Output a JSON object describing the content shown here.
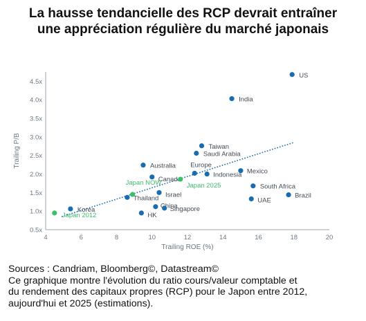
{
  "title_lines": [
    "La hausse tendancielle des RCP devrait entraîner",
    "une appréciation régulière du marché japonais"
  ],
  "footnote_lines": [
    "Sources : Candriam, Bloomberg©, Datastream©",
    "Ce graphique montre l'évolution du ratio cours/valeur comptable et",
    "du rendement des capitaux propres (RCP) pour le Japon entre 2012,",
    "aujourd'hui et 2025 (estimations)."
  ],
  "chart_data": {
    "type": "scatter",
    "xlabel": "Trailing ROE (%)",
    "ylabel": "Trailing P/B",
    "xlim": [
      4,
      20
    ],
    "ylim": [
      0.5,
      4.75
    ],
    "xticks": [
      4,
      6,
      8,
      10,
      12,
      14,
      16,
      18,
      20
    ],
    "xtick_labels": [
      "4",
      "6",
      "8",
      "10",
      "12",
      "14",
      "16",
      "18",
      "20"
    ],
    "yticks": [
      0.5,
      1.0,
      1.5,
      2.0,
      2.5,
      3.0,
      3.5,
      4.0,
      4.5
    ],
    "ytick_labels": [
      "0.5x",
      "1.0x",
      "1.5x",
      "2.0x",
      "2.5x",
      "3.0x",
      "3.5x",
      "4.0x",
      "4.5x"
    ],
    "grid": false,
    "colors": {
      "country": "#1a6cb0",
      "japan": "#3bbf6a",
      "trend": "#1a6cb0",
      "axis": "#9aa5b1",
      "tick_text": "#6b7785"
    },
    "points": [
      {
        "label": "US",
        "x": 17.9,
        "y": 4.68,
        "japan": false
      },
      {
        "label": "India",
        "x": 14.5,
        "y": 4.03,
        "japan": false
      },
      {
        "label": "Taiwan",
        "x": 12.8,
        "y": 2.76,
        "japan": false
      },
      {
        "label": "Saudi Arabia",
        "x": 12.5,
        "y": 2.56,
        "japan": false
      },
      {
        "label": "Australia",
        "x": 9.5,
        "y": 2.24,
        "japan": false
      },
      {
        "label": "Europe",
        "x": 12.4,
        "y": 2.02,
        "japan": false
      },
      {
        "label": "Indonesia",
        "x": 13.1,
        "y": 2.0,
        "japan": false
      },
      {
        "label": "Mexico",
        "x": 15.0,
        "y": 2.09,
        "japan": false
      },
      {
        "label": "Canada",
        "x": 10.0,
        "y": 1.92,
        "japan": false
      },
      {
        "label": "South Africa",
        "x": 15.7,
        "y": 1.68,
        "japan": false
      },
      {
        "label": "Israel",
        "x": 10.4,
        "y": 1.5,
        "japan": false
      },
      {
        "label": "Brazil",
        "x": 17.7,
        "y": 1.44,
        "japan": false
      },
      {
        "label": "Thailand",
        "x": 8.6,
        "y": 1.37,
        "japan": false
      },
      {
        "label": "UAE",
        "x": 15.6,
        "y": 1.33,
        "japan": false
      },
      {
        "label": "China",
        "x": 10.2,
        "y": 1.12,
        "japan": false
      },
      {
        "label": "Singapore",
        "x": 10.7,
        "y": 1.08,
        "japan": false
      },
      {
        "label": "Korea",
        "x": 5.4,
        "y": 1.06,
        "japan": false
      },
      {
        "label": "HK",
        "x": 9.4,
        "y": 0.95,
        "japan": false
      },
      {
        "label": "Japan 2012",
        "x": 4.5,
        "y": 0.95,
        "japan": true
      },
      {
        "label": "Japan NOW",
        "x": 8.9,
        "y": 1.45,
        "japan": true
      },
      {
        "label": "Japan 2025",
        "x": 11.6,
        "y": 1.86,
        "japan": true
      }
    ],
    "trendline": {
      "x": [
        4.9,
        18.0
      ],
      "y": [
        0.85,
        2.85
      ]
    }
  }
}
